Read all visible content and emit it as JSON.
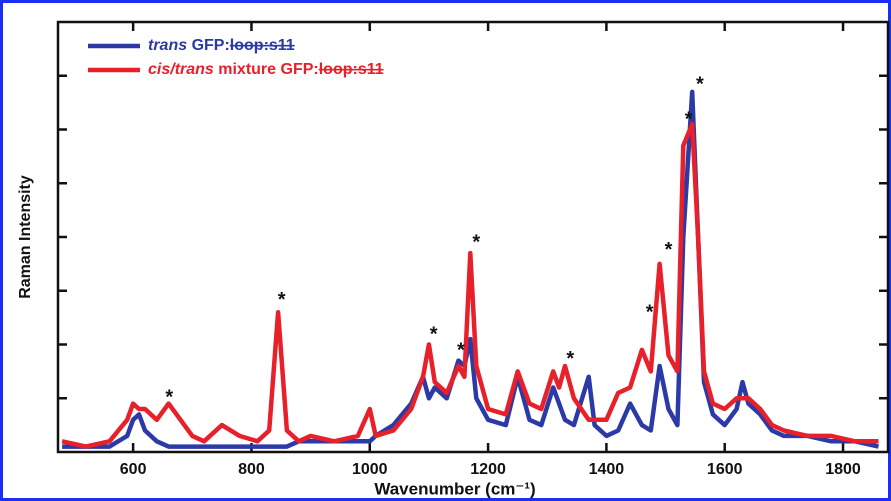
{
  "chart_data": {
    "type": "line",
    "x_label": "Wavenumber (cm⁻¹)",
    "y_label": "Raman Intensity",
    "xlim": [
      473,
      1876
    ],
    "ylim": [
      0,
      8
    ],
    "xticks": [
      600,
      800,
      1000,
      1200,
      1400,
      1600,
      1800
    ],
    "yticks": [
      1,
      2,
      3,
      4,
      5,
      6,
      7
    ],
    "legend": "upper-left",
    "x": [
      480,
      520,
      560,
      590,
      600,
      610,
      620,
      640,
      660,
      680,
      700,
      720,
      750,
      780,
      810,
      830,
      845,
      860,
      880,
      900,
      940,
      980,
      1000,
      1010,
      1040,
      1070,
      1090,
      1100,
      1110,
      1130,
      1150,
      1160,
      1170,
      1180,
      1200,
      1230,
      1250,
      1270,
      1290,
      1310,
      1320,
      1330,
      1345,
      1370,
      1380,
      1400,
      1420,
      1440,
      1460,
      1475,
      1490,
      1505,
      1520,
      1530,
      1545,
      1555,
      1565,
      1580,
      1600,
      1620,
      1630,
      1640,
      1660,
      1680,
      1700,
      1740,
      1780,
      1820,
      1860
    ],
    "series": [
      {
        "name": "trans GFP:loop:s11",
        "color": "#2b3aa6",
        "values": [
          0.1,
          0.1,
          0.1,
          0.3,
          0.6,
          0.7,
          0.4,
          0.2,
          0.1,
          0.1,
          0.1,
          0.1,
          0.1,
          0.1,
          0.1,
          0.1,
          0.1,
          0.1,
          0.2,
          0.2,
          0.2,
          0.2,
          0.2,
          0.3,
          0.5,
          0.9,
          1.4,
          1.0,
          1.2,
          1.0,
          1.7,
          1.6,
          2.1,
          1.0,
          0.6,
          0.5,
          1.4,
          0.6,
          0.5,
          1.2,
          0.9,
          0.6,
          0.5,
          1.4,
          0.5,
          0.3,
          0.4,
          0.9,
          0.5,
          0.4,
          1.6,
          0.8,
          0.5,
          4.0,
          6.7,
          4.0,
          1.3,
          0.7,
          0.5,
          0.8,
          1.3,
          0.9,
          0.7,
          0.4,
          0.3,
          0.3,
          0.2,
          0.2,
          0.1
        ]
      },
      {
        "name": "cis/trans mixture GFP:loop:s11",
        "color": "#e8202a",
        "values": [
          0.2,
          0.1,
          0.2,
          0.6,
          0.9,
          0.8,
          0.8,
          0.6,
          0.9,
          0.6,
          0.3,
          0.2,
          0.5,
          0.3,
          0.2,
          0.4,
          2.6,
          0.4,
          0.2,
          0.3,
          0.2,
          0.3,
          0.8,
          0.3,
          0.4,
          0.8,
          1.4,
          2.0,
          1.3,
          1.1,
          1.6,
          1.4,
          3.7,
          1.6,
          0.8,
          0.7,
          1.5,
          0.9,
          0.8,
          1.5,
          1.2,
          1.6,
          1.0,
          0.6,
          0.6,
          0.6,
          1.1,
          1.2,
          1.9,
          1.5,
          3.5,
          1.8,
          1.5,
          5.7,
          6.1,
          4.0,
          1.5,
          0.9,
          0.8,
          1.0,
          1.0,
          1.0,
          0.8,
          0.5,
          0.4,
          0.3,
          0.3,
          0.2,
          0.2
        ]
      }
    ],
    "annotations": [
      {
        "text": "*",
        "x": 661,
        "y": 1.06
      },
      {
        "text": "*",
        "x": 851,
        "y": 2.87
      },
      {
        "text": "*",
        "x": 1108,
        "y": 2.23
      },
      {
        "text": "*",
        "x": 1154,
        "y": 1.93
      },
      {
        "text": "*",
        "x": 1180,
        "y": 3.94
      },
      {
        "text": "*",
        "x": 1339,
        "y": 1.77
      },
      {
        "text": "*",
        "x": 1473,
        "y": 2.64
      },
      {
        "text": "*",
        "x": 1505,
        "y": 3.8
      },
      {
        "text": "*",
        "x": 1539,
        "y": 6.23
      },
      {
        "text": "*",
        "x": 1558,
        "y": 6.88
      }
    ]
  }
}
